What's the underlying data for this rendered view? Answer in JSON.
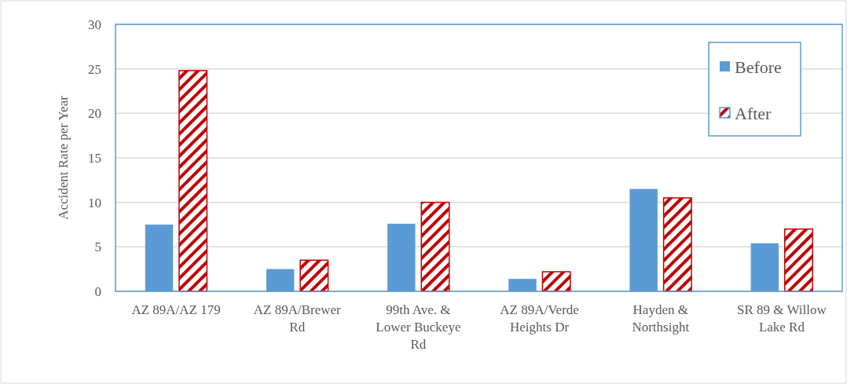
{
  "chart_data": {
    "type": "bar",
    "ylabel": "Accident Rate per Year",
    "categories": [
      "AZ 89A/AZ 179",
      "AZ 89A/Brewer Rd",
      "99th Ave. & Lower Buckeye Rd",
      "AZ 89A/Verde Heights Dr",
      "Hayden & Northsight",
      "SR 89 & Willow Lake Rd"
    ],
    "series": [
      {
        "name": "Before",
        "color": "#5b9bd5",
        "values": [
          7.5,
          2.5,
          7.6,
          1.4,
          11.5,
          5.4
        ]
      },
      {
        "name": "After",
        "color": "#c00000",
        "values": [
          24.8,
          3.5,
          10.0,
          2.2,
          10.5,
          7.0
        ]
      }
    ],
    "ylim": [
      0,
      30
    ],
    "yticks": [
      0,
      5,
      10,
      15,
      20,
      25,
      30
    ],
    "grid": "y",
    "legend": "top right"
  }
}
